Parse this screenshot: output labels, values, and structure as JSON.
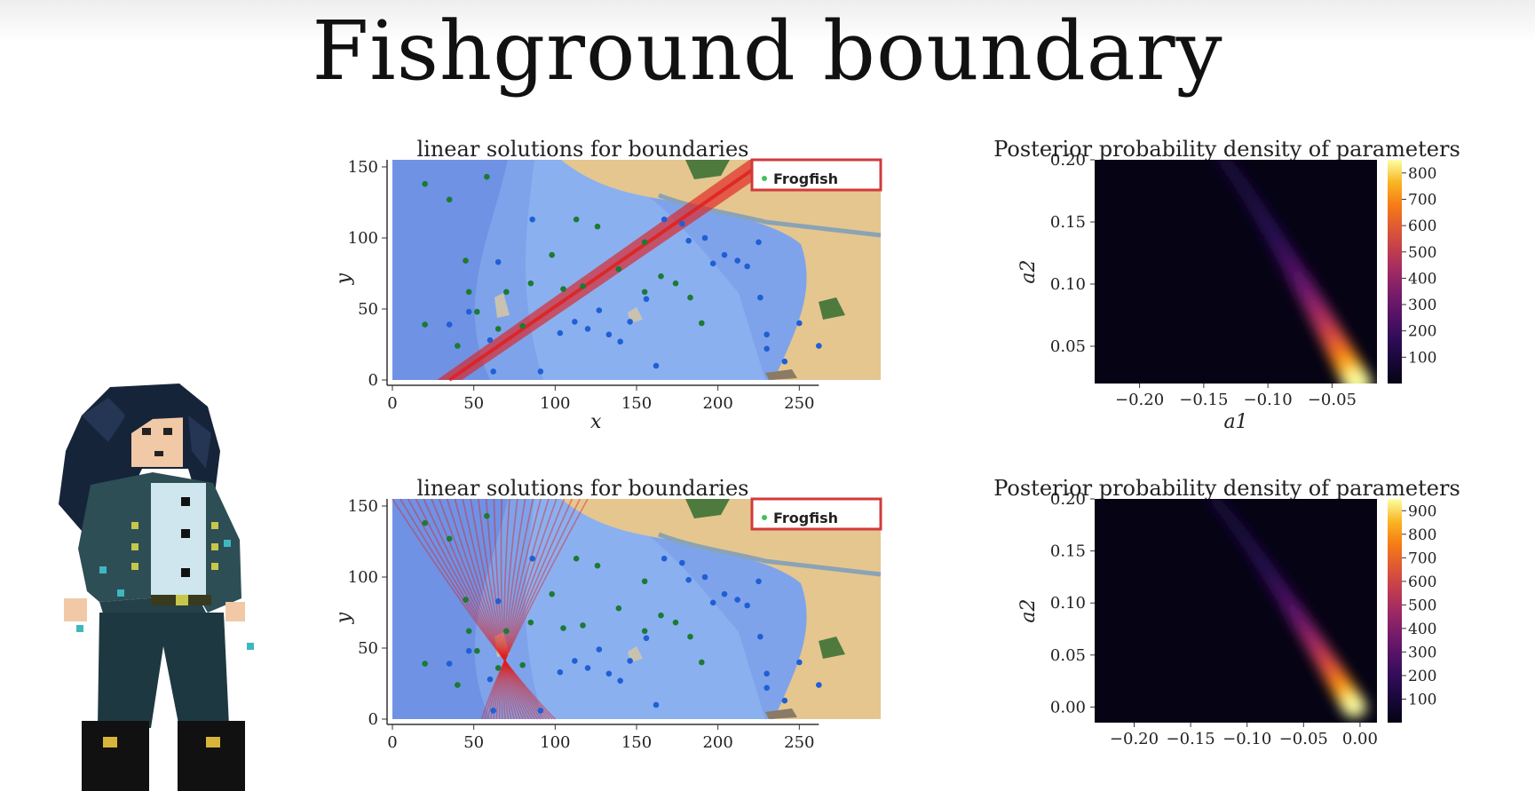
{
  "slide": {
    "title": "Fishground boundary"
  },
  "colors": {
    "frogfish": "#1b7a34",
    "other_fish": "#1f5fd6",
    "boundary_line": "#e02020",
    "legend_text_frogfish": "#43c15a"
  },
  "chart_data": [
    {
      "type": "scatter",
      "title": "linear solutions for boundaries",
      "xlabel": "x",
      "ylabel": "y",
      "xlim": [
        0,
        300
      ],
      "ylim": [
        0,
        155
      ],
      "xticks": [
        0,
        50,
        100,
        150,
        200,
        250
      ],
      "yticks": [
        0,
        50,
        100,
        150
      ],
      "legend": {
        "placement": "top-right",
        "entries": [
          "Frogfish"
        ]
      },
      "background": "map",
      "series": [
        {
          "name": "Frogfish",
          "color": "#1b7a34",
          "points": [
            [
              20,
              138
            ],
            [
              35,
              127
            ],
            [
              58,
              143
            ],
            [
              45,
              84
            ],
            [
              47,
              62
            ],
            [
              52,
              48
            ],
            [
              70,
              62
            ],
            [
              98,
              88
            ],
            [
              113,
              113
            ],
            [
              117,
              66
            ],
            [
              126,
              108
            ],
            [
              139,
              78
            ],
            [
              155,
              97
            ],
            [
              155,
              62
            ],
            [
              165,
              73
            ],
            [
              174,
              68
            ],
            [
              183,
              58
            ],
            [
              190,
              40
            ],
            [
              105,
              64
            ],
            [
              65,
              36
            ],
            [
              80,
              38
            ],
            [
              85,
              68
            ],
            [
              40,
              24
            ],
            [
              20,
              39
            ]
          ]
        },
        {
          "color": "#1f5fd6",
          "points": [
            [
              86,
              113
            ],
            [
              65,
              83
            ],
            [
              47,
              48
            ],
            [
              35,
              39
            ],
            [
              60,
              28
            ],
            [
              62,
              6
            ],
            [
              91,
              6
            ],
            [
              103,
              33
            ],
            [
              112,
              41
            ],
            [
              120,
              36
            ],
            [
              127,
              49
            ],
            [
              133,
              32
            ],
            [
              140,
              27
            ],
            [
              146,
              41
            ],
            [
              156,
              57
            ],
            [
              162,
              10
            ],
            [
              167,
              113
            ],
            [
              178,
              110
            ],
            [
              182,
              98
            ],
            [
              192,
              100
            ],
            [
              197,
              82
            ],
            [
              204,
              88
            ],
            [
              212,
              84
            ],
            [
              218,
              80
            ],
            [
              225,
              97
            ],
            [
              226,
              58
            ],
            [
              230,
              32
            ],
            [
              230,
              22
            ],
            [
              241,
              13
            ],
            [
              250,
              40
            ],
            [
              262,
              24
            ]
          ]
        }
      ],
      "boundary_lines": [
        {
          "x": [
            35,
            230
          ],
          "y": [
            0,
            155
          ]
        }
      ]
    },
    {
      "type": "heatmap",
      "title": "Posterior probability density of parameters",
      "xlabel": "a1",
      "ylabel": "a2",
      "xlim": [
        -0.235,
        -0.015
      ],
      "ylim": [
        0.02,
        0.2
      ],
      "xticks": [
        -0.2,
        -0.15,
        -0.1,
        -0.05
      ],
      "yticks": [
        0.05,
        0.1,
        0.15,
        0.2
      ],
      "colormap": "inferno",
      "colorbar_ticks": [
        100,
        200,
        300,
        400,
        500,
        600,
        700,
        800
      ],
      "colorbar_max": 850
    },
    {
      "type": "scatter",
      "title": "linear solutions for boundaries",
      "xlabel": "",
      "ylabel": "y",
      "xlim": [
        0,
        300
      ],
      "ylim": [
        0,
        155
      ],
      "xticks": [
        0,
        50,
        100,
        150,
        200,
        250
      ],
      "yticks": [
        0,
        50,
        100,
        150
      ],
      "legend": {
        "placement": "top-right",
        "entries": [
          "Frogfish"
        ]
      },
      "background": "map",
      "series": [
        {
          "name": "Frogfish",
          "color": "#1b7a34",
          "points": [
            [
              20,
              138
            ],
            [
              35,
              127
            ],
            [
              58,
              143
            ],
            [
              45,
              84
            ],
            [
              47,
              62
            ],
            [
              52,
              48
            ],
            [
              70,
              62
            ],
            [
              98,
              88
            ],
            [
              113,
              113
            ],
            [
              117,
              66
            ],
            [
              126,
              108
            ],
            [
              139,
              78
            ],
            [
              155,
              97
            ],
            [
              155,
              62
            ],
            [
              165,
              73
            ],
            [
              174,
              68
            ],
            [
              183,
              58
            ],
            [
              190,
              40
            ],
            [
              105,
              64
            ],
            [
              65,
              36
            ],
            [
              80,
              38
            ],
            [
              85,
              68
            ],
            [
              40,
              24
            ],
            [
              20,
              39
            ]
          ]
        },
        {
          "color": "#1f5fd6",
          "points": [
            [
              86,
              113
            ],
            [
              65,
              83
            ],
            [
              47,
              48
            ],
            [
              35,
              39
            ],
            [
              60,
              28
            ],
            [
              62,
              6
            ],
            [
              91,
              6
            ],
            [
              103,
              33
            ],
            [
              112,
              41
            ],
            [
              120,
              36
            ],
            [
              127,
              49
            ],
            [
              133,
              32
            ],
            [
              140,
              27
            ],
            [
              146,
              41
            ],
            [
              156,
              57
            ],
            [
              162,
              10
            ],
            [
              167,
              113
            ],
            [
              178,
              110
            ],
            [
              182,
              98
            ],
            [
              192,
              100
            ],
            [
              197,
              82
            ],
            [
              204,
              88
            ],
            [
              212,
              84
            ],
            [
              218,
              80
            ],
            [
              225,
              97
            ],
            [
              226,
              58
            ],
            [
              230,
              32
            ],
            [
              230,
              22
            ],
            [
              241,
              13
            ],
            [
              250,
              40
            ],
            [
              262,
              24
            ]
          ]
        }
      ],
      "boundary_fan": {
        "pivot": [
          65,
          40
        ],
        "top_x_range": [
          0,
          120
        ],
        "bottom_x_range": [
          55,
          100
        ],
        "count": 26
      }
    },
    {
      "type": "heatmap",
      "title": "Posterior probability density of parameters",
      "xlabel": "",
      "ylabel": "a2",
      "xlim": [
        -0.235,
        0.015
      ],
      "ylim": [
        -0.015,
        0.2
      ],
      "xticks": [
        -0.2,
        -0.15,
        -0.1,
        -0.05,
        0.0
      ],
      "yticks": [
        0.0,
        0.05,
        0.1,
        0.15,
        0.2
      ],
      "colormap": "inferno",
      "colorbar_ticks": [
        100,
        200,
        300,
        400,
        500,
        600,
        700,
        800,
        900
      ],
      "colorbar_max": 950
    }
  ]
}
